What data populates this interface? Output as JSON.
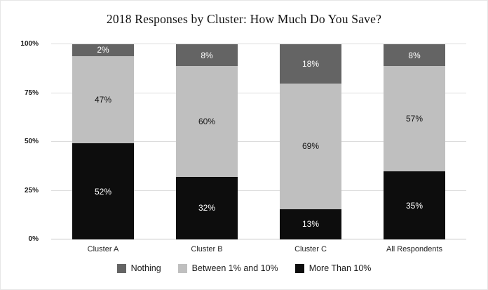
{
  "chart_data": {
    "type": "bar",
    "variant": "stacked-100-percent",
    "title": "2018 Responses by Cluster: How Much Do You Save?",
    "categories": [
      "Cluster A",
      "Cluster B",
      "Cluster C",
      "All Respondents"
    ],
    "series": [
      {
        "name": "Nothing",
        "color": "#646464",
        "label_color": "#ffffff",
        "values": [
          2,
          8,
          18,
          8
        ]
      },
      {
        "name": "Between 1% and 10%",
        "color": "#bfbfbf",
        "label_color": "#141414",
        "values": [
          47,
          60,
          69,
          57
        ]
      },
      {
        "name": "More Than 10%",
        "color": "#0d0d0d",
        "label_color": "#ffffff",
        "values": [
          52,
          32,
          13,
          35
        ]
      }
    ],
    "y_ticks": [
      {
        "label": "100%",
        "value": 100
      },
      {
        "label": "75%",
        "value": 75
      },
      {
        "label": "50%",
        "value": 50
      },
      {
        "label": "25%",
        "value": 25
      },
      {
        "label": "0%",
        "value": 0
      }
    ],
    "ylim": [
      0,
      100
    ],
    "xlabel": "",
    "ylabel": "",
    "grid": true,
    "legend_position": "bottom",
    "data_label_suffix": "%"
  }
}
